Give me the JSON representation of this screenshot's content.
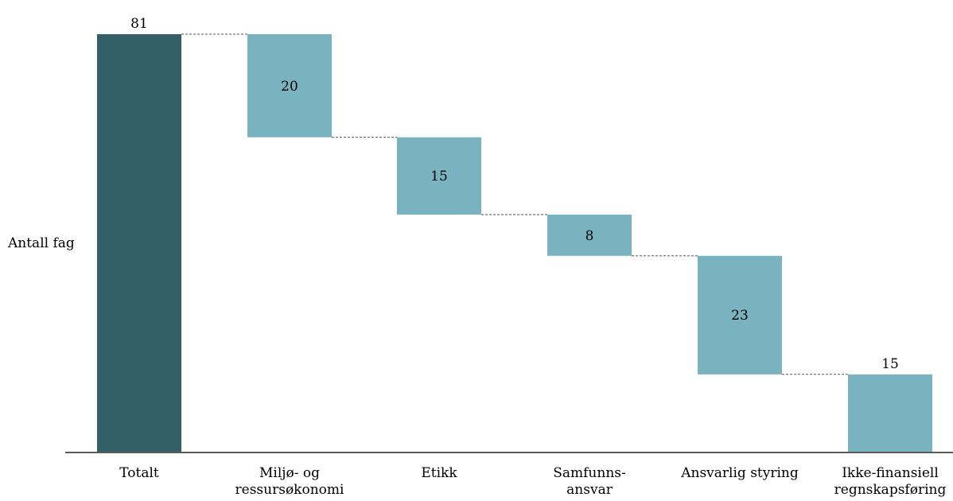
{
  "chart_data": {
    "type": "waterfall",
    "ylabel": "Antall fag",
    "categories": [
      "Totalt",
      "Miljø- og ressursøkonomi",
      "Etikk",
      "Samfunns-ansvar",
      "Ansvarlig styring",
      "Ikke-finansiell regnskapsføring"
    ],
    "category_lines": [
      [
        "Totalt"
      ],
      [
        "Miljø- og",
        "ressursøkonomi"
      ],
      [
        "Etikk"
      ],
      [
        "Samfunns-",
        "ansvar"
      ],
      [
        "Ansvarlig styring"
      ],
      [
        "Ikke-finansiell",
        "regnskapsføring"
      ]
    ],
    "values": [
      81,
      20,
      15,
      8,
      23,
      15
    ],
    "labels": [
      "81",
      "20",
      "15",
      "8",
      "23",
      "15"
    ],
    "label_position": [
      "above",
      "inside",
      "inside",
      "inside",
      "inside",
      "above"
    ],
    "bar_kind": [
      "total",
      "step",
      "step",
      "step",
      "step",
      "step"
    ],
    "ylim": [
      0,
      81
    ],
    "grid": false,
    "legend": "none",
    "colors": {
      "total": "#355f66",
      "step": "#7ab3c0",
      "connector": "#555555",
      "axis": "#222222"
    }
  }
}
